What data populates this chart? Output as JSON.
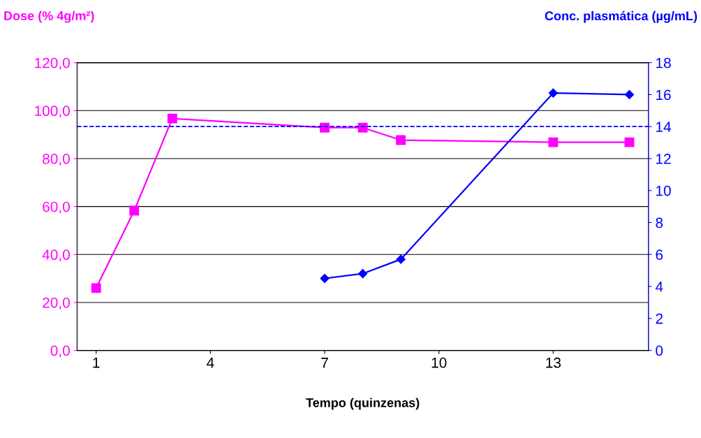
{
  "chart_data": {
    "type": "line",
    "xlabel": "Tempo (quinzenas)",
    "ylabel": "Dose (% 4g/m²)",
    "y2label": "Conc. plasmática (µg/mL)",
    "xlim": [
      0.5,
      15.5
    ],
    "xticks": [
      1,
      4,
      7,
      10,
      13
    ],
    "ylim": [
      0,
      120
    ],
    "yticks": [
      {
        "value": 0,
        "label": "0,0"
      },
      {
        "value": 20,
        "label": "20,0"
      },
      {
        "value": 40,
        "label": "40,0"
      },
      {
        "value": 60,
        "label": "60,0"
      },
      {
        "value": 80,
        "label": "80,0"
      },
      {
        "value": 100,
        "label": "100,0"
      },
      {
        "value": 120,
        "label": "120,0"
      }
    ],
    "y2lim": [
      0,
      18
    ],
    "y2ticks": [
      0,
      2,
      4,
      6,
      8,
      10,
      12,
      14,
      16,
      18
    ],
    "grid": "y",
    "line_style": "solid",
    "series": [
      {
        "color": "#ff00ff",
        "marker": "square",
        "x": [
          1,
          2,
          3,
          7,
          8,
          9,
          13,
          15
        ],
        "values": [
          26,
          58.3,
          96.7,
          92.9,
          92.9,
          87.7,
          86.8,
          86.8
        ]
      },
      {
        "color": "#0000ff",
        "marker": "diamond",
        "axis": "y2",
        "x": [
          7,
          8,
          9,
          13,
          15
        ],
        "values": [
          4.5,
          4.8,
          5.7,
          16.1,
          16.0
        ]
      }
    ],
    "ref_lines": [
      {
        "axis": "y2",
        "value": 14,
        "color": "#0000ff",
        "line_style": "dashed"
      }
    ]
  }
}
